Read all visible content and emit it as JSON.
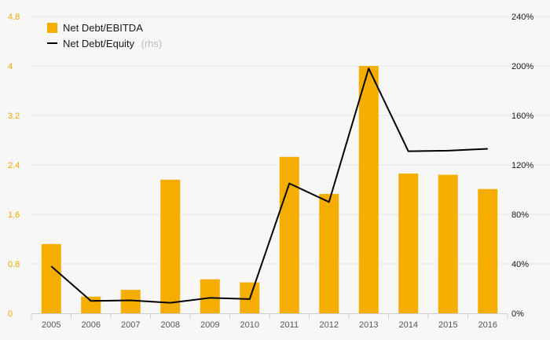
{
  "chart_data": {
    "type": "bar+line",
    "categories": [
      "2005",
      "2006",
      "2007",
      "2008",
      "2009",
      "2010",
      "2011",
      "2012",
      "2013",
      "2014",
      "2015",
      "2016"
    ],
    "series": [
      {
        "name": "Net Debt/EBITDA",
        "type": "bar",
        "axis": "left",
        "values": [
          1.12,
          0.27,
          0.38,
          2.16,
          0.55,
          0.5,
          2.53,
          1.93,
          4.0,
          2.26,
          2.24,
          2.01
        ]
      },
      {
        "name": "Net Debt/Equity",
        "type": "line",
        "axis": "right",
        "values": [
          38,
          10,
          10.5,
          8.5,
          12.5,
          11.5,
          105,
          90,
          198,
          131,
          131.5,
          133
        ]
      }
    ],
    "legend": {
      "position": "top-left",
      "items": [
        {
          "label": "Net Debt/EBITDA",
          "suffix": ""
        },
        {
          "label": "Net Debt/Equity",
          "suffix": "(rhs)"
        }
      ]
    },
    "y_left": {
      "min": 0,
      "max": 4.8,
      "ticks": [
        0,
        0.8,
        1.6,
        2.4,
        3.2,
        4,
        4.8
      ],
      "tick_labels": [
        "0",
        "0.8",
        "1.6",
        "2.4",
        "3.2",
        "4",
        "4.8"
      ]
    },
    "y_right": {
      "min": 0,
      "max": 240,
      "ticks": [
        0,
        40,
        80,
        120,
        160,
        200,
        240
      ],
      "tick_labels": [
        "0%",
        "40%",
        "80%",
        "120%",
        "160%",
        "200%",
        "240%"
      ]
    },
    "grid": true,
    "colors": {
      "bar": "#f5ae00",
      "line": "#000000",
      "left_tick": "#f5a800",
      "right_tick": "#1a1a1a",
      "grid": "#e4e4e4",
      "background": "#f7f7f7"
    }
  }
}
